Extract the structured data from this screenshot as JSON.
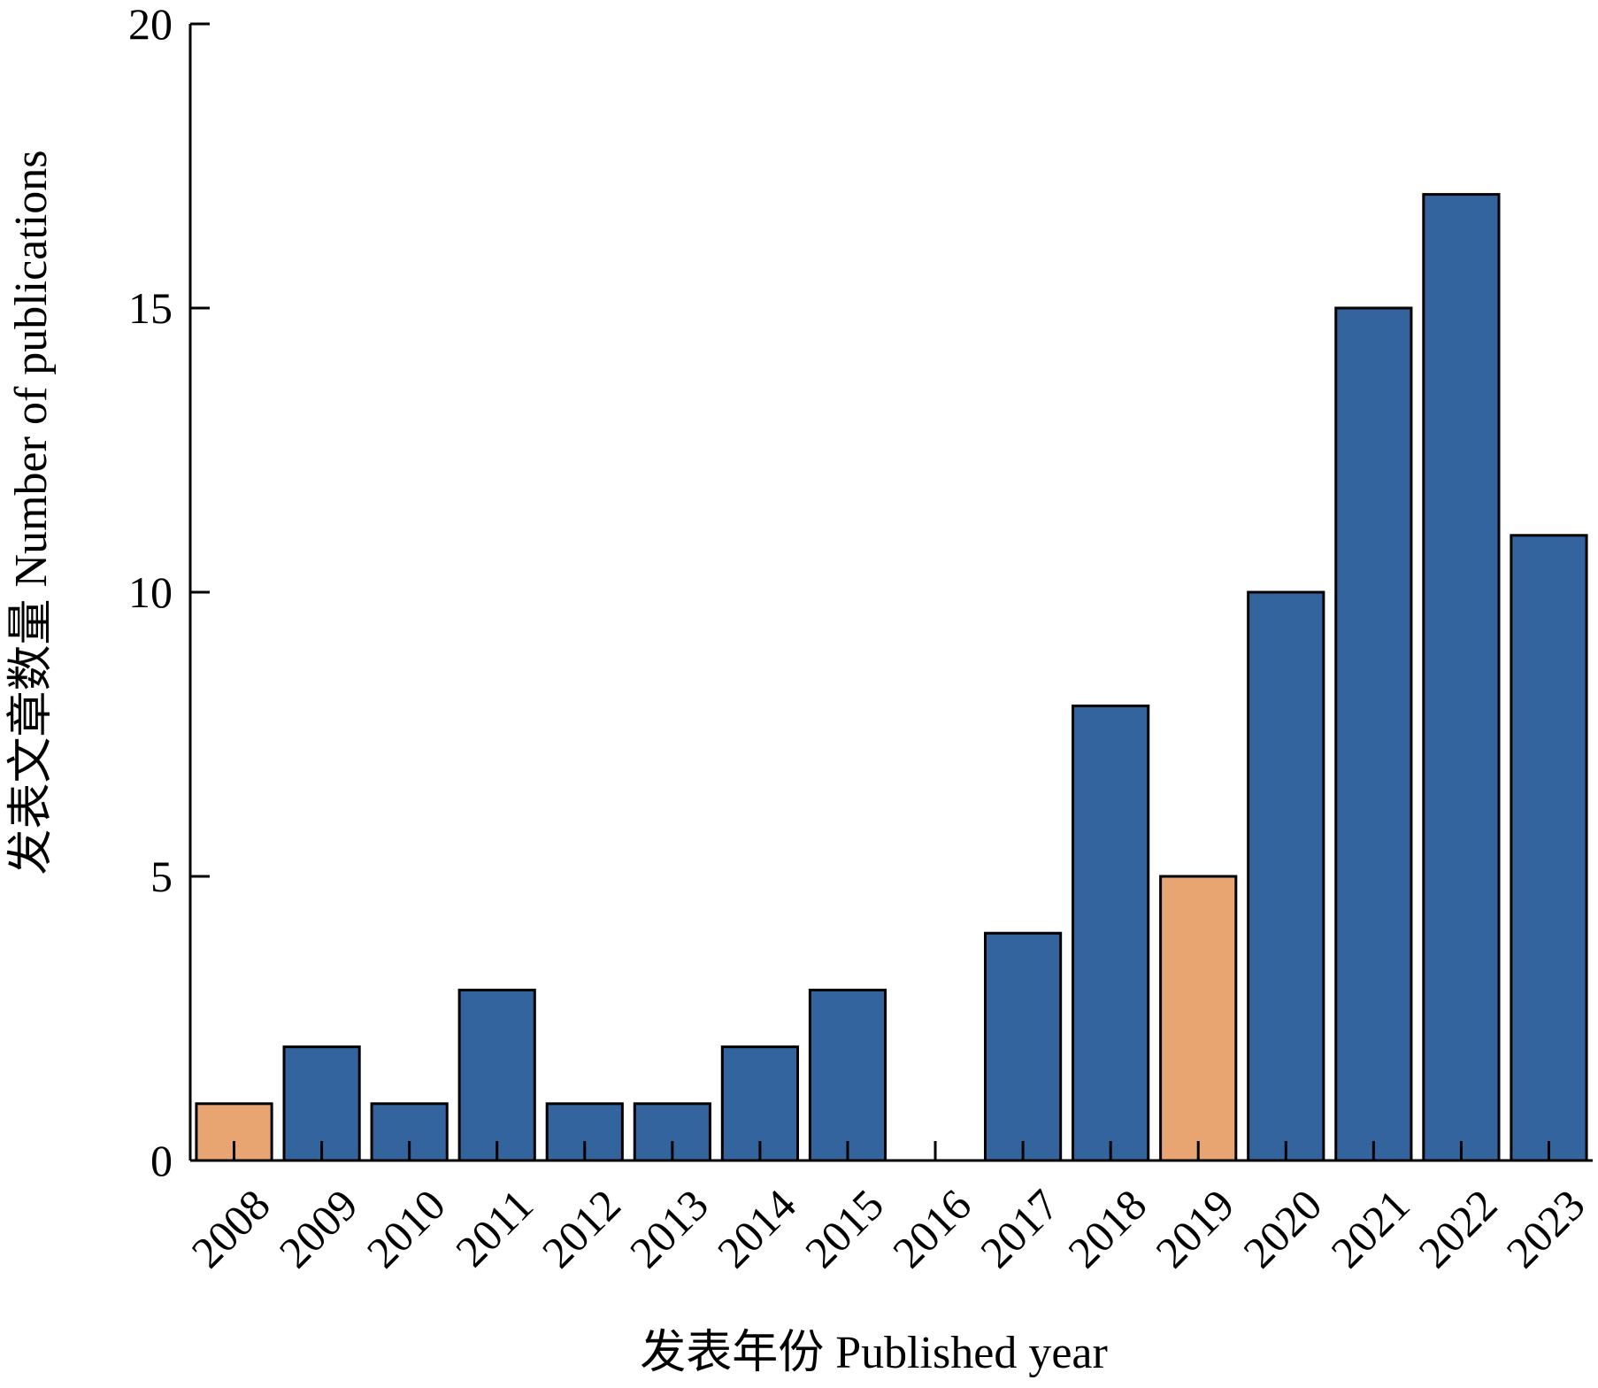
{
  "chart_data": {
    "type": "bar",
    "xlabel": "发表年份 Published year",
    "ylabel": "发表文章数量 Number of publications",
    "ylim": [
      0,
      20
    ],
    "yticks": [
      0,
      5,
      10,
      15,
      20
    ],
    "categories": [
      "2008",
      "2009",
      "2010",
      "2011",
      "2012",
      "2013",
      "2014",
      "2015",
      "2016",
      "2017",
      "2018",
      "2019",
      "2020",
      "2021",
      "2022",
      "2023"
    ],
    "values": [
      1,
      2,
      1,
      3,
      1,
      1,
      2,
      3,
      0,
      4,
      8,
      5,
      10,
      15,
      17,
      11
    ],
    "highlighted_categories": [
      "2008",
      "2019"
    ],
    "grid": false,
    "legend": "none",
    "colors": {
      "bar_default": "#33649e",
      "bar_highlight": "#e8a572",
      "bar_outline": "#000000",
      "axis": "#000000"
    }
  }
}
